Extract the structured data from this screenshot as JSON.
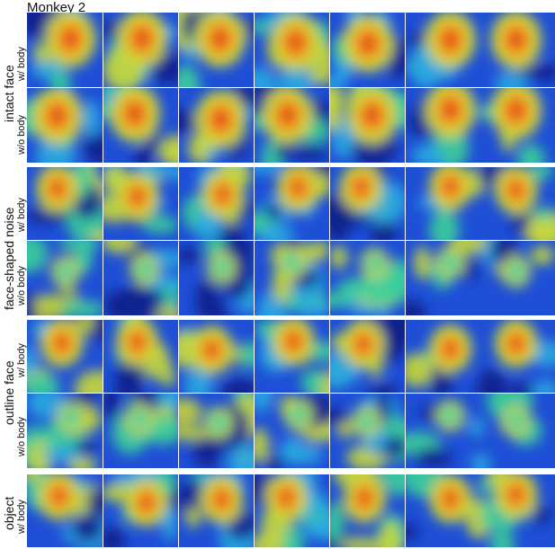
{
  "title": "Monkey 2",
  "groups": [
    {
      "label": "intact face",
      "rows": [
        "w/ body",
        "w/o body"
      ]
    },
    {
      "label": "face-shaped noise",
      "rows": [
        "w/ body",
        "w/o body"
      ]
    },
    {
      "label": "outline face",
      "rows": [
        "w/ body",
        "w/o body"
      ]
    },
    {
      "label": "object",
      "rows": [
        "w/ body"
      ]
    }
  ],
  "colors": {
    "colormap": [
      "#10208a",
      "#1e4fd6",
      "#2aa8e0",
      "#3ccf9a",
      "#c8d83a",
      "#f2a020",
      "#e23a12",
      "#9a0f0a"
    ]
  }
}
